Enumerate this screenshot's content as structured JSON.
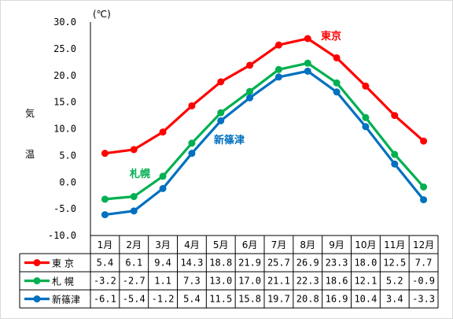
{
  "chart_data": {
    "type": "line",
    "unit": "(℃)",
    "ylabel": [
      "気",
      "温"
    ],
    "ylim": [
      -10,
      30
    ],
    "yticks": [
      "30.0",
      "25.0",
      "20.0",
      "15.0",
      "10.0",
      "5.0",
      "0.0",
      "-5.0",
      "-10.0"
    ],
    "categories": [
      "1月",
      "2月",
      "3月",
      "4月",
      "5月",
      "6月",
      "7月",
      "8月",
      "9月",
      "10月",
      "11月",
      "12月"
    ],
    "grid": false,
    "series": [
      {
        "name": "東 京",
        "label": "東京",
        "color": "#ff0000",
        "values": [
          5.4,
          6.1,
          9.4,
          14.3,
          18.8,
          21.9,
          25.7,
          26.9,
          23.3,
          18.0,
          12.5,
          7.7
        ],
        "texts": [
          "5.4",
          "6.1",
          "9.4",
          "14.3",
          "18.8",
          "21.9",
          "25.7",
          "26.9",
          "23.3",
          "18.0",
          "12.5",
          "7.7"
        ]
      },
      {
        "name": "札 幌",
        "label": "札幌",
        "color": "#00b050",
        "values": [
          -3.2,
          -2.7,
          1.1,
          7.3,
          13.0,
          17.0,
          21.1,
          22.3,
          18.6,
          12.1,
          5.2,
          -0.9
        ],
        "texts": [
          "-3.2",
          "-2.7",
          "1.1",
          "7.3",
          "13.0",
          "17.0",
          "21.1",
          "22.3",
          "18.6",
          "12.1",
          "5.2",
          "-0.9"
        ]
      },
      {
        "name": "新篠津",
        "label": "新篠津",
        "color": "#0070c0",
        "values": [
          -6.1,
          -5.4,
          -1.2,
          5.4,
          11.5,
          15.8,
          19.7,
          20.8,
          16.9,
          10.4,
          3.4,
          -3.3
        ],
        "texts": [
          "-6.1",
          "-5.4",
          "-1.2",
          "5.4",
          "11.5",
          "15.8",
          "19.7",
          "20.8",
          "16.9",
          "10.4",
          "3.4",
          "-3.3"
        ]
      }
    ]
  }
}
